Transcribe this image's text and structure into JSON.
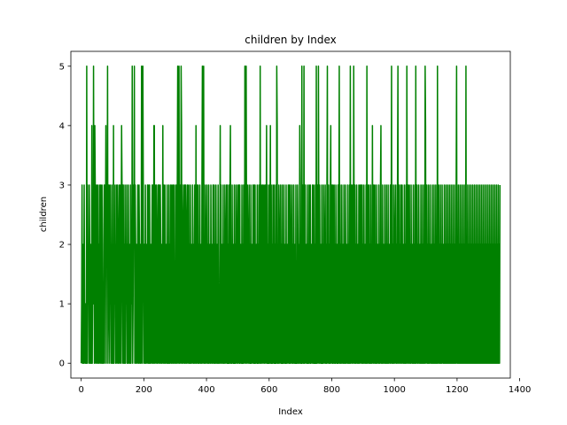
{
  "chart_data": {
    "type": "line",
    "title": "children by Index",
    "xlabel": "Index",
    "ylabel": "children",
    "xlim": [
      -33,
      1370
    ],
    "ylim": [
      -0.25,
      5.25
    ],
    "x_ticks": [
      0,
      200,
      400,
      600,
      800,
      1000,
      1200,
      1400
    ],
    "y_ticks": [
      0,
      1,
      2,
      3,
      4,
      5
    ],
    "grid": false,
    "legend": "none",
    "series": [
      {
        "color": "#008000",
        "x_start": 0,
        "x_end": 1337,
        "values": [
          0,
          1,
          3,
          0,
          0,
          2,
          0,
          3,
          1,
          0,
          1,
          0,
          0,
          5,
          0,
          3,
          1,
          2,
          0,
          3,
          2,
          0,
          2,
          0,
          0,
          4,
          0,
          2,
          1,
          5,
          2,
          0,
          4,
          3,
          0,
          2,
          3,
          0,
          1,
          3,
          0,
          2,
          0,
          3,
          1,
          0,
          3,
          2,
          0,
          3,
          0,
          1,
          0,
          2,
          3,
          0,
          3,
          2,
          4,
          0,
          3,
          2,
          5,
          0,
          1,
          3,
          2,
          0,
          3,
          1,
          2,
          0,
          3,
          0,
          2,
          0,
          4,
          0,
          3,
          1,
          2,
          0,
          3,
          2,
          0,
          3,
          1,
          0,
          2,
          3,
          0,
          1,
          3,
          0,
          2,
          4,
          3,
          0,
          3,
          3,
          0,
          2,
          0,
          3,
          0,
          2,
          1,
          3,
          0,
          2,
          0,
          3,
          1,
          0,
          2,
          0,
          3,
          0,
          2,
          1,
          5,
          0,
          1,
          3,
          2,
          5,
          0,
          3,
          2,
          0,
          2,
          1,
          0,
          3,
          1,
          0,
          3,
          2,
          0,
          2,
          0,
          1,
          5,
          0,
          2,
          5,
          3,
          0,
          2,
          2,
          0,
          3,
          0,
          1,
          2,
          0,
          3,
          2,
          0,
          3,
          0,
          3,
          0,
          1,
          2,
          0,
          2,
          3,
          0,
          3,
          0,
          4,
          4,
          0,
          3,
          2,
          0,
          3,
          1,
          0,
          2,
          3,
          0,
          3,
          2,
          0,
          3,
          2,
          0,
          2,
          0,
          1,
          4,
          0,
          3,
          2,
          0,
          3,
          0,
          2,
          1,
          0,
          3,
          0,
          2,
          0,
          3,
          0,
          2,
          0,
          3,
          1,
          0,
          3,
          2,
          0,
          3,
          0,
          2,
          3,
          0,
          1,
          0,
          3,
          2,
          0,
          3,
          5,
          0,
          2,
          5,
          0,
          2,
          3,
          0,
          5,
          4,
          0,
          3,
          2,
          0,
          2,
          3,
          0,
          3,
          0,
          3,
          2,
          0,
          2,
          3,
          0,
          1,
          3,
          0,
          2,
          0,
          3,
          0,
          1,
          2,
          0,
          3,
          2,
          0,
          2,
          0,
          3,
          2,
          0,
          4,
          0,
          3,
          2,
          0,
          3,
          0,
          2,
          0,
          3,
          1,
          0,
          2,
          0,
          3,
          5,
          0,
          2,
          5,
          0,
          2,
          0,
          3,
          1,
          0,
          2,
          3,
          0,
          2,
          0,
          3,
          0,
          1,
          2,
          0,
          3,
          1,
          0,
          2,
          0,
          3,
          2,
          0,
          3,
          0,
          2,
          0,
          3,
          1,
          0,
          2,
          0,
          3,
          0,
          1,
          0,
          2,
          4,
          0,
          3,
          0,
          2,
          1,
          0,
          3,
          0,
          2,
          0,
          3,
          1,
          0,
          2,
          3,
          0,
          3,
          0,
          2,
          0,
          3,
          0,
          3,
          4,
          0,
          2,
          0,
          3,
          1,
          0,
          2,
          0,
          3,
          0,
          2,
          0,
          3,
          1,
          0,
          2,
          3,
          0,
          2,
          3,
          0,
          3,
          0,
          2,
          1,
          0,
          3,
          0,
          2,
          0,
          3,
          1,
          0,
          5,
          4,
          0,
          5,
          2,
          0,
          3,
          1,
          0,
          2,
          3,
          0,
          2,
          0,
          3,
          0,
          1,
          2,
          0,
          3,
          2,
          0,
          3,
          0,
          3,
          0,
          1,
          2,
          0,
          3,
          0,
          2,
          0,
          3,
          1,
          0,
          5,
          0,
          2,
          3,
          0,
          1,
          3,
          0,
          2,
          3,
          0,
          1,
          3,
          0,
          2,
          4,
          0,
          3,
          0,
          2,
          0,
          3,
          0,
          2,
          4,
          0,
          3,
          0,
          2,
          0,
          3,
          1,
          0,
          3,
          0,
          2,
          0,
          3,
          0,
          5,
          4,
          0,
          2,
          0,
          3,
          1,
          0,
          2,
          3,
          0,
          2,
          0,
          3,
          0,
          2,
          0,
          3,
          1,
          0,
          2,
          0,
          3,
          0,
          1,
          2,
          0,
          3,
          2,
          0,
          3,
          0,
          3,
          1,
          0,
          2,
          3,
          0,
          2,
          0,
          3,
          1,
          0,
          2,
          0,
          3,
          0,
          1,
          0,
          3,
          2,
          0,
          2,
          0,
          4,
          3,
          0,
          2,
          0,
          5,
          0,
          3,
          2,
          0,
          5,
          0,
          2,
          3,
          0,
          1,
          2,
          0,
          3,
          0,
          2,
          0,
          3,
          2,
          0,
          3,
          0,
          2,
          1,
          0,
          3,
          2,
          0,
          3,
          0,
          2,
          0,
          3,
          0,
          5,
          0,
          2,
          3,
          0,
          5,
          2,
          0,
          3,
          1,
          0,
          2,
          0,
          3,
          0,
          2,
          0,
          3,
          1,
          0,
          2,
          3,
          0,
          2,
          0,
          3,
          5,
          0,
          2,
          3,
          0,
          2,
          0,
          3,
          4,
          0,
          3,
          2,
          0,
          3,
          0,
          2,
          3,
          0,
          2,
          0,
          3,
          1,
          0,
          2,
          0,
          3,
          0,
          2,
          5,
          0,
          3,
          0,
          2,
          0,
          3,
          1,
          0,
          2,
          0,
          3,
          0,
          2,
          0,
          3,
          0,
          2,
          1,
          0,
          3,
          0,
          2,
          0,
          3,
          0,
          5,
          0,
          2,
          3,
          0,
          2,
          3,
          0,
          5,
          2,
          0,
          3,
          0,
          2,
          0,
          3,
          1,
          0,
          2,
          0,
          3,
          0,
          2,
          3,
          0,
          2,
          3,
          0,
          3,
          0,
          2,
          0,
          3,
          1,
          0,
          2,
          0,
          3,
          0,
          5,
          0,
          3,
          2,
          0,
          3,
          0,
          2,
          0,
          3,
          0,
          2,
          0,
          4,
          1,
          0,
          3,
          2,
          0,
          3,
          0,
          2,
          0,
          3,
          0,
          1,
          2,
          0,
          3,
          0,
          2,
          0,
          3,
          4,
          0,
          2,
          0,
          3,
          0,
          2,
          1,
          0,
          3,
          0,
          2,
          0,
          3,
          0,
          2,
          0,
          3,
          0,
          2,
          1,
          0,
          3,
          0,
          2,
          5,
          0,
          3,
          0,
          2,
          0,
          3,
          1,
          0,
          2,
          3,
          0,
          2,
          0,
          3,
          5,
          0,
          2,
          3,
          0,
          2,
          0,
          3,
          2,
          0,
          3,
          1,
          0,
          2,
          0,
          3,
          0,
          2,
          0,
          3,
          0,
          5,
          2,
          0,
          3,
          0,
          2,
          3,
          0,
          2,
          0,
          3,
          1,
          0,
          2,
          0,
          3,
          0,
          2,
          0,
          3,
          0,
          5,
          0,
          2,
          3,
          0,
          2,
          0,
          3,
          1,
          0,
          2,
          0,
          3,
          0,
          2,
          0,
          3,
          0,
          2,
          0,
          3,
          0,
          5,
          4,
          0,
          2,
          3,
          0,
          2,
          0,
          3,
          0,
          2,
          0,
          3,
          1,
          0,
          2,
          0,
          3,
          0,
          2,
          0,
          3,
          0,
          2,
          0,
          3,
          0,
          2,
          0,
          5,
          0,
          2,
          3,
          0,
          2,
          0,
          3,
          0,
          2,
          0,
          3,
          1,
          0,
          2,
          0,
          3,
          0,
          2,
          0,
          3,
          0,
          2,
          0,
          3,
          0,
          2,
          0,
          3,
          0,
          2,
          0,
          3,
          0,
          2,
          0,
          3,
          0,
          2,
          0,
          3,
          0,
          2,
          0,
          3,
          5,
          0,
          2,
          0,
          3,
          0,
          2,
          0,
          3,
          0,
          2,
          0,
          3,
          0,
          2,
          0,
          3,
          0,
          2,
          0,
          3,
          0,
          5,
          0,
          2,
          0,
          3,
          0,
          2,
          0,
          3,
          0,
          2,
          0,
          3,
          0,
          2,
          0,
          3,
          0,
          2,
          0,
          3,
          0,
          2,
          0,
          3,
          0,
          2,
          0,
          3,
          0,
          2,
          0,
          3,
          0,
          2,
          0,
          3,
          0,
          2,
          0,
          3,
          0,
          2,
          0,
          3,
          0,
          2,
          0,
          3,
          0,
          2,
          0,
          3,
          0,
          2,
          0,
          3,
          0,
          2,
          0,
          3,
          0,
          2,
          0,
          3,
          0,
          2,
          0,
          3,
          0,
          2,
          0,
          3,
          0,
          2,
          0,
          3,
          0,
          2,
          0,
          3
        ]
      }
    ]
  }
}
